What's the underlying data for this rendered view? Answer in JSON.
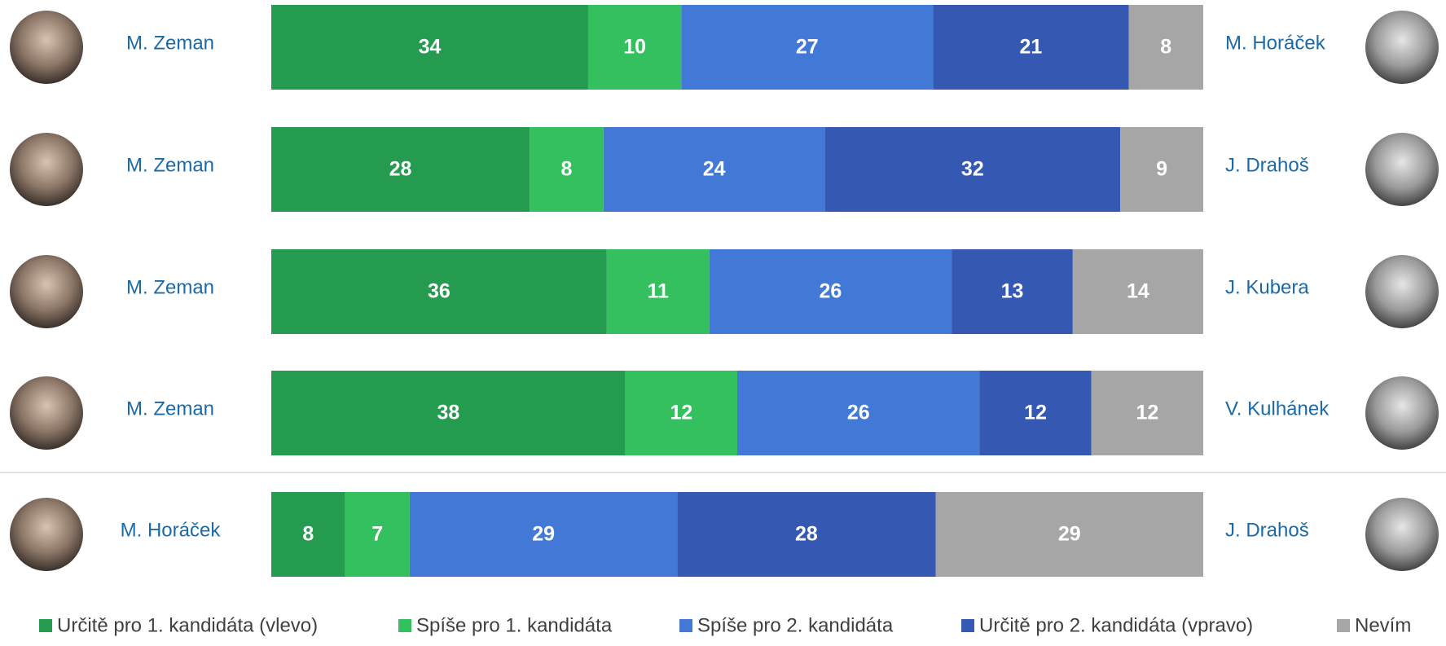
{
  "chart_data": {
    "type": "bar",
    "orientation": "horizontal",
    "stacking": "percent",
    "categories": [
      "M. Zeman",
      "M. Zeman",
      "M. Zeman",
      "M. Zeman",
      "M. Horáček"
    ],
    "categories_right": [
      "M. Horáček",
      "J. Drahoš",
      "J. Kubera",
      "V. Kulhánek",
      "J. Drahoš"
    ],
    "series": [
      {
        "name": "Určitě pro 1. kandidáta (vlevo)",
        "color": "#259b4f",
        "values": [
          34,
          28,
          36,
          38,
          8
        ]
      },
      {
        "name": "Spíše pro 1. kandidáta",
        "color": "#35c060",
        "values": [
          10,
          8,
          11,
          12,
          7
        ]
      },
      {
        "name": "Spíše pro 2. kandidáta",
        "color": "#4279d6",
        "values": [
          27,
          24,
          26,
          26,
          29
        ]
      },
      {
        "name": "Určitě pro 2. kandidáta (vpravo)",
        "color": "#3558b3",
        "values": [
          21,
          32,
          13,
          12,
          28
        ]
      },
      {
        "name": "Nevím",
        "color": "#a6a6a6",
        "values": [
          8,
          9,
          14,
          12,
          29
        ]
      }
    ]
  }
}
